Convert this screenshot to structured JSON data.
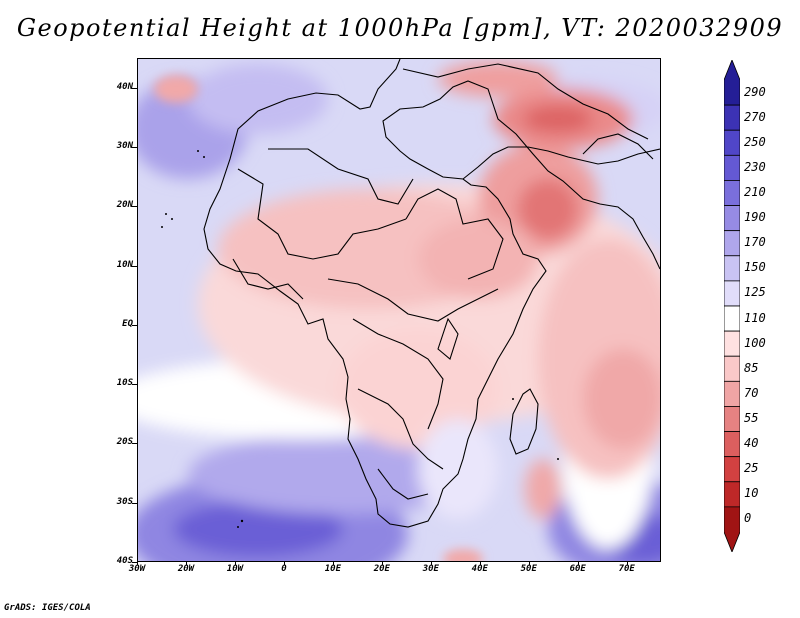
{
  "title": "Geopotential Height at 1000hPa [gpm], VT: 2020032909",
  "map": {
    "variable": "Geopotential Height",
    "level": "1000hPa",
    "units": "gpm",
    "valid_time": "2020032909",
    "extent": {
      "lon_min": -30,
      "lon_max": 77,
      "lat_min": -40,
      "lat_max": 45
    },
    "lat_labels": [
      "40N",
      "30N",
      "20N",
      "10N",
      "EQ",
      "10S",
      "20S",
      "30S",
      "40S"
    ],
    "lon_labels": [
      "30W",
      "20W",
      "10W",
      "0",
      "10E",
      "20E",
      "30E",
      "40E",
      "50E",
      "60E",
      "70E"
    ]
  },
  "colorbar": {
    "labels": [
      "290",
      "270",
      "250",
      "230",
      "210",
      "190",
      "170",
      "150",
      "125",
      "110",
      "100",
      "85",
      "70",
      "55",
      "40",
      "25",
      "10",
      "0"
    ],
    "colors": [
      "#241e96",
      "#3c32b4",
      "#5046c8",
      "#6459d4",
      "#7a6fdc",
      "#968be4",
      "#afa6ec",
      "#c9c3f3",
      "#e1ddfa",
      "#ffffff",
      "#ffe1e1",
      "#fac8c8",
      "#f0a5a5",
      "#e68282",
      "#dc5f5f",
      "#d24141",
      "#be2828",
      "#a01414"
    ]
  },
  "credit": "GrADS: IGES/COLA"
}
